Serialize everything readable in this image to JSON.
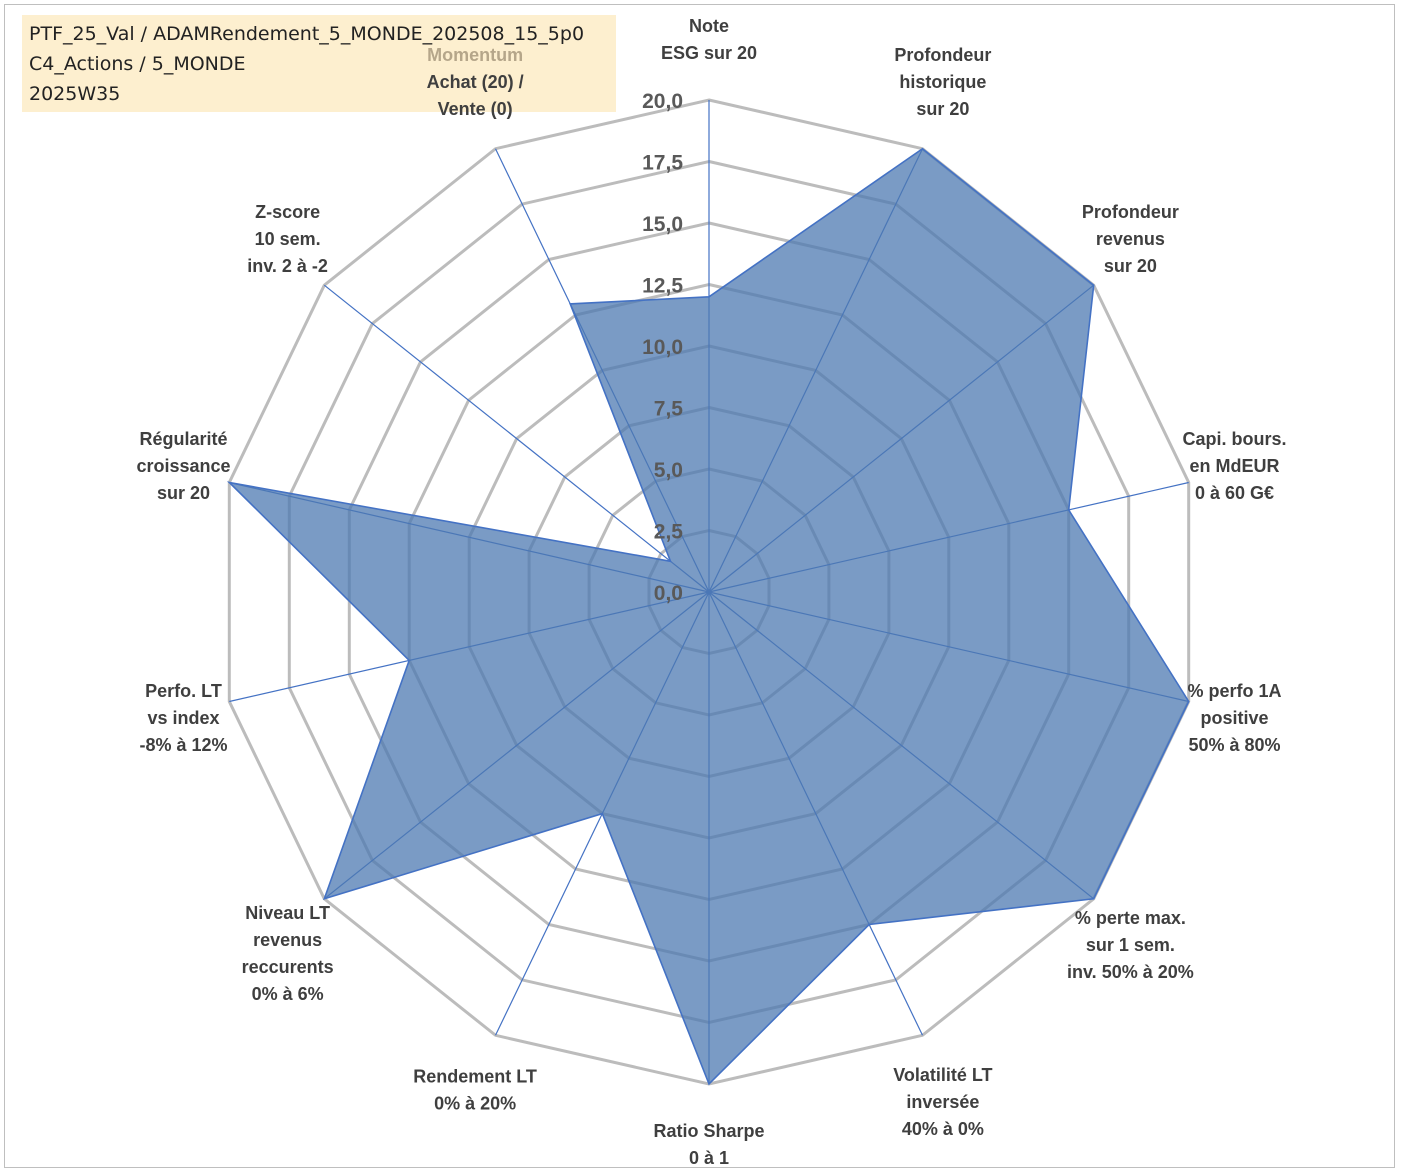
{
  "header": {
    "line1": "PTF_25_Val / ADAMRendement_5_MONDE_202508_15_5p0",
    "line2": "C4_Actions / 5_MONDE",
    "line3": "2025W35"
  },
  "colors": {
    "fill": "#4e79b1",
    "stroke": "#4472c4",
    "grid": "#bcbcbc",
    "header_bg": "#fdefcf",
    "highlight_label": "#b5a68a"
  },
  "chart_data": {
    "type": "radar",
    "rmin": 0,
    "rmax": 20,
    "ticks": [
      "0,0",
      "2,5",
      "5,0",
      "7,5",
      "10,0",
      "12,5",
      "15,0",
      "17,5",
      "20,0"
    ],
    "grid": true,
    "categories": [
      {
        "lines": [
          "Note",
          "ESG sur 20"
        ]
      },
      {
        "lines": [
          "Profondeur",
          "historique",
          "sur 20"
        ]
      },
      {
        "lines": [
          "Profondeur",
          "revenus",
          "sur 20"
        ]
      },
      {
        "lines": [
          "Capi. bours.",
          "en MdEUR",
          "0 à 60 G€"
        ]
      },
      {
        "lines": [
          "% perfo 1A",
          "positive",
          "50% à 80%"
        ]
      },
      {
        "lines": [
          "% perte max.",
          "sur 1 sem.",
          "inv. 50% à 20%"
        ]
      },
      {
        "lines": [
          "Volatilité LT",
          "inversée",
          "40% à 0%"
        ]
      },
      {
        "lines": [
          "Ratio Sharpe",
          "0 à 1"
        ]
      },
      {
        "lines": [
          "Rendement LT",
          "0% à 20%"
        ]
      },
      {
        "lines": [
          "Niveau LT",
          "revenus",
          "reccurents",
          "0% à 6%"
        ]
      },
      {
        "lines": [
          "Perfo. LT",
          "vs index",
          "-8% à 12%"
        ]
      },
      {
        "lines": [
          "Régularité",
          "croissance",
          "sur 20"
        ]
      },
      {
        "lines": [
          "Z-score",
          "10 sem.",
          "inv. 2 à -2"
        ]
      },
      {
        "lines": [
          "Momentum",
          "Achat (20) /",
          "Vente (0)"
        ]
      }
    ],
    "series": [
      {
        "values": [
          12.0,
          20.0,
          20.0,
          15.0,
          20.0,
          20.0,
          15.0,
          20.0,
          10.0,
          20.0,
          12.5,
          20.0,
          2.0,
          13.0
        ]
      }
    ]
  }
}
